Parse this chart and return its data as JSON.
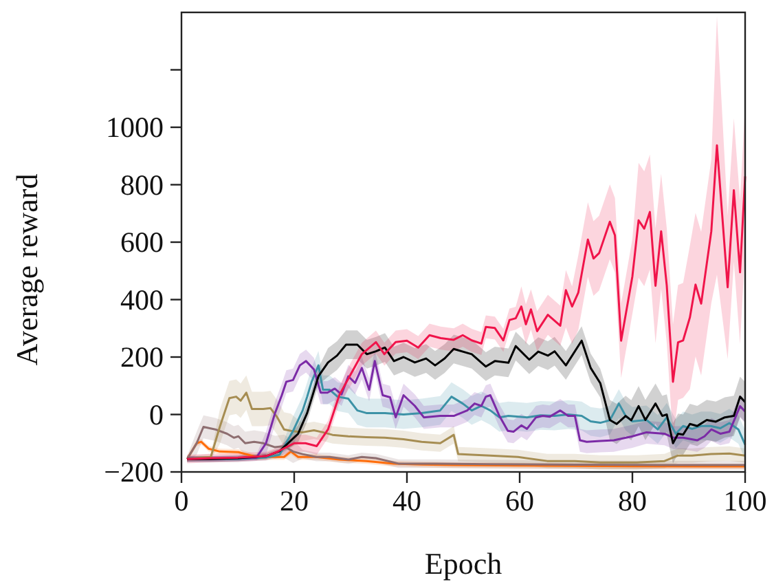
{
  "chart_data": {
    "type": "line",
    "xlabel": "Epoch",
    "ylabel": "Average reward",
    "xlim": [
      0,
      100
    ],
    "ylim": [
      -200,
      1400
    ],
    "xticks": [
      0,
      20,
      40,
      60,
      80,
      100
    ],
    "yticks": [
      {
        "value": -200,
        "label": "−200"
      },
      0,
      200,
      400,
      600,
      800,
      1000,
      {
        "value": 1200,
        "label": null
      }
    ],
    "grid": false,
    "line_style": "solid",
    "marker": "none",
    "series": [
      {
        "color": "#ff6d0a",
        "x": [
          1,
          2.7,
          3.5,
          4.8,
          6.8,
          10.1,
          13.3,
          18.2,
          19.4,
          20.7,
          23.9,
          28,
          32.8,
          37.7,
          42.6,
          48.3,
          60,
          80,
          100
        ],
        "values": [
          -155,
          -100,
          -95,
          -119,
          -129,
          -131,
          -148,
          -148,
          -129,
          -148,
          -148,
          -157,
          -162,
          -171,
          -174,
          -176,
          -178,
          -180,
          -181
        ],
        "upper": [
          -145,
          -90,
          -85,
          -109,
          -119,
          -121,
          -138,
          -138,
          -119,
          -138,
          -138,
          -147,
          -152,
          -161,
          -164,
          -166,
          -168,
          -170,
          -171
        ],
        "lower": [
          -165,
          -110,
          -105,
          -129,
          -139,
          -141,
          -158,
          -158,
          -139,
          -158,
          -158,
          -167,
          -172,
          -181,
          -184,
          -186,
          -188,
          -190,
          -191
        ]
      },
      {
        "color": "#8e6e70",
        "x": [
          1,
          2.7,
          3.9,
          6,
          8.1,
          9.3,
          10.1,
          11.3,
          12.9,
          14.5,
          16.6,
          18.2,
          19.8,
          21.5,
          23.9,
          26.3,
          29.6,
          32,
          34.5,
          38.5,
          45,
          55,
          70,
          85,
          100
        ],
        "values": [
          -155,
          -100,
          -43,
          -52,
          -67,
          -81,
          -76,
          -100,
          -95,
          -100,
          -114,
          -110,
          -129,
          -138,
          -148,
          -148,
          -157,
          -148,
          -152,
          -171,
          -171,
          -173,
          -175,
          -176,
          -176
        ],
        "upper": [
          -145,
          -60,
          -3,
          -12,
          -27,
          -41,
          -36,
          -60,
          -55,
          -60,
          -74,
          -70,
          -89,
          -123,
          -133,
          -133,
          -142,
          -133,
          -137,
          -156,
          -156,
          -158,
          -160,
          -161,
          -161
        ],
        "lower": [
          -165,
          -140,
          -83,
          -92,
          -107,
          -121,
          -116,
          -140,
          -135,
          -140,
          -154,
          -150,
          -169,
          -153,
          -163,
          -163,
          -172,
          -163,
          -167,
          -186,
          -186,
          -188,
          -190,
          -191,
          -191
        ]
      },
      {
        "color": "#a68d52",
        "x": [
          1,
          3.5,
          5.2,
          6.8,
          8.5,
          9.7,
          10.5,
          11.5,
          12.5,
          14.5,
          15.8,
          17,
          18.2,
          19.4,
          21.5,
          23.5,
          25.1,
          26.8,
          29.6,
          32.8,
          36.1,
          39.4,
          42.6,
          45.9,
          48.3,
          49.1,
          51.5,
          54.8,
          59.7,
          64.9,
          69.8,
          74.3,
          80.8,
          85.7,
          88.1,
          90.6,
          93.9,
          97.2,
          100
        ],
        "values": [
          -155,
          -150,
          -148,
          -43,
          57,
          62,
          48,
          76,
          19,
          19,
          22,
          -10,
          -52,
          -57,
          -62,
          -55,
          -62,
          -71,
          -76,
          -79,
          -81,
          -86,
          -95,
          -100,
          -71,
          -138,
          -140,
          -143,
          -148,
          -162,
          -162,
          -167,
          -167,
          -162,
          -143,
          -143,
          -138,
          -136,
          -143
        ],
        "upper": [
          -145,
          -140,
          -138,
          17,
          117,
          122,
          108,
          136,
          79,
          79,
          82,
          50,
          8,
          3,
          -32,
          -25,
          -32,
          -41,
          -46,
          -49,
          -51,
          -56,
          -65,
          -70,
          -41,
          -113,
          -115,
          -118,
          -123,
          -137,
          -137,
          -142,
          -142,
          -137,
          -118,
          -118,
          -113,
          -111,
          -118
        ],
        "lower": [
          -165,
          -160,
          -158,
          -103,
          -3,
          2,
          -12,
          16,
          -41,
          -41,
          -38,
          -70,
          -112,
          -117,
          -92,
          -85,
          -92,
          -101,
          -106,
          -109,
          -111,
          -116,
          -125,
          -130,
          -101,
          -163,
          -165,
          -168,
          -173,
          -187,
          -187,
          -192,
          -192,
          -187,
          -168,
          -168,
          -163,
          -161,
          -168
        ]
      },
      {
        "color": "#3c92a6",
        "x": [
          1,
          5,
          10,
          15,
          17.4,
          19.8,
          21.5,
          22.3,
          23.1,
          24.3,
          25.1,
          26.3,
          27.7,
          29.6,
          31.2,
          32.8,
          36.1,
          39.4,
          42.6,
          45.9,
          47.9,
          49.9,
          51.5,
          53.2,
          54.8,
          56.4,
          58,
          61.3,
          63.7,
          66.2,
          68.6,
          71,
          72.6,
          74.3,
          76,
          77.6,
          78.8,
          80,
          82.5,
          84.5,
          86.1,
          87.7,
          89,
          90.6,
          92.2,
          93.9,
          95.6,
          97.2,
          98.8,
          100
        ],
        "values": [
          -155,
          -155,
          -155,
          -150,
          -140,
          -57,
          14,
          62,
          114,
          171,
          86,
          86,
          62,
          55,
          14,
          5,
          5,
          0,
          5,
          14,
          62,
          38,
          14,
          30,
          14,
          -10,
          -5,
          -10,
          -3,
          -5,
          0,
          -5,
          -24,
          -29,
          -20,
          38,
          -5,
          -24,
          -19,
          -52,
          -10,
          -67,
          -40,
          -50,
          -40,
          -40,
          -48,
          -30,
          -52,
          -105
        ],
        "upper": [
          -145,
          -145,
          -145,
          -140,
          -130,
          -7,
          64,
          112,
          164,
          221,
          136,
          136,
          112,
          105,
          64,
          55,
          55,
          50,
          55,
          64,
          112,
          88,
          64,
          80,
          64,
          40,
          45,
          40,
          47,
          45,
          50,
          45,
          26,
          21,
          30,
          88,
          45,
          26,
          31,
          -2,
          40,
          -17,
          10,
          0,
          10,
          10,
          2,
          20,
          -2,
          -55
        ],
        "lower": [
          -165,
          -165,
          -165,
          -160,
          -150,
          -107,
          -36,
          12,
          64,
          121,
          36,
          36,
          12,
          5,
          -36,
          -45,
          -45,
          -50,
          -45,
          -36,
          12,
          -12,
          -36,
          -20,
          -36,
          -60,
          -55,
          -60,
          -53,
          -55,
          -50,
          -55,
          -74,
          -79,
          -70,
          -12,
          -55,
          -74,
          -69,
          -102,
          -60,
          -117,
          -90,
          -100,
          -90,
          -90,
          -98,
          -80,
          -102,
          -155
        ]
      },
      {
        "color": "#7b2aa6",
        "x": [
          1,
          5,
          10,
          13.3,
          15,
          16.6,
          17.8,
          18.6,
          19.8,
          21,
          22.1,
          23.5,
          24.7,
          25.9,
          27.2,
          28.4,
          29.6,
          30.8,
          32,
          33.3,
          34.3,
          35.7,
          37,
          38,
          39.4,
          41.4,
          43,
          45.9,
          48.3,
          50.7,
          52,
          53.2,
          54,
          54.8,
          56.4,
          57.9,
          58.9,
          60.3,
          61.3,
          62.9,
          64.1,
          65.3,
          67.2,
          68.6,
          69.8,
          70.7,
          71.9,
          74.3,
          76.7,
          80,
          82.5,
          85.7,
          87.3,
          89,
          91.5,
          92.8,
          94,
          95.6,
          97.2,
          99.1,
          100
        ],
        "values": [
          -155,
          -155,
          -152,
          -150,
          -100,
          5,
          67,
          114,
          120,
          171,
          186,
          157,
          76,
          76,
          90,
          70,
          133,
          110,
          162,
          86,
          186,
          67,
          60,
          -10,
          67,
          30,
          -10,
          -5,
          -5,
          14,
          38,
          30,
          62,
          67,
          -5,
          -57,
          -60,
          -38,
          -50,
          -10,
          -5,
          -8,
          14,
          -5,
          -5,
          -90,
          -95,
          -92,
          -90,
          -76,
          -62,
          -67,
          -81,
          -81,
          -90,
          -76,
          -52,
          -67,
          -60,
          29,
          10
        ],
        "upper": [
          -145,
          -145,
          -142,
          -140,
          -60,
          45,
          107,
          154,
          160,
          211,
          226,
          197,
          116,
          116,
          130,
          110,
          173,
          150,
          202,
          126,
          226,
          107,
          100,
          30,
          107,
          70,
          30,
          35,
          35,
          54,
          78,
          70,
          102,
          107,
          35,
          -17,
          -20,
          2,
          -10,
          30,
          35,
          32,
          54,
          35,
          35,
          -50,
          -55,
          -52,
          -50,
          -36,
          -22,
          -27,
          -41,
          -41,
          -50,
          -36,
          -12,
          -27,
          -20,
          69,
          50
        ],
        "lower": [
          -165,
          -165,
          -162,
          -160,
          -140,
          -35,
          27,
          74,
          80,
          131,
          146,
          117,
          36,
          36,
          50,
          30,
          93,
          70,
          122,
          46,
          146,
          27,
          20,
          -50,
          27,
          -10,
          -50,
          -45,
          -45,
          -26,
          -2,
          -10,
          22,
          27,
          -45,
          -97,
          -100,
          -78,
          -90,
          -50,
          -45,
          -48,
          -26,
          -45,
          -45,
          -130,
          -135,
          -132,
          -130,
          -116,
          -102,
          -107,
          -121,
          -121,
          -130,
          -116,
          -92,
          -107,
          -100,
          -11,
          -30
        ]
      },
      {
        "color": "#000000",
        "x": [
          1,
          5,
          10,
          15,
          17.4,
          20.7,
          22.3,
          24.3,
          26,
          27.6,
          29.2,
          31.2,
          32.9,
          34.5,
          36.1,
          37.7,
          39.4,
          41.4,
          43.4,
          45,
          46.7,
          48.3,
          51.5,
          54,
          55.6,
          58,
          59.3,
          61.7,
          63.3,
          65,
          66.2,
          68.2,
          71,
          72.6,
          74.3,
          76,
          77.2,
          78.8,
          79.8,
          81.1,
          82.3,
          84.1,
          85.3,
          86.1,
          87.2,
          88.1,
          89,
          90.2,
          91.5,
          93.2,
          94.8,
          96.4,
          98,
          99.1,
          100
        ],
        "values": [
          -155,
          -155,
          -152,
          -145,
          -128,
          -67,
          5,
          133,
          181,
          205,
          243,
          243,
          210,
          220,
          233,
          186,
          200,
          181,
          195,
          171,
          195,
          228,
          210,
          167,
          186,
          180,
          238,
          191,
          219,
          205,
          220,
          171,
          257,
          162,
          109,
          -19,
          -33,
          -5,
          -20,
          29,
          -19,
          38,
          -5,
          0,
          -100,
          -67,
          -70,
          -33,
          -40,
          -19,
          -25,
          -10,
          -5,
          62,
          43
        ],
        "upper": [
          -145,
          -145,
          -142,
          -135,
          -118,
          -37,
          35,
          163,
          231,
          255,
          293,
          293,
          260,
          270,
          283,
          236,
          250,
          231,
          245,
          221,
          245,
          278,
          260,
          217,
          236,
          230,
          288,
          241,
          269,
          255,
          270,
          221,
          307,
          212,
          159,
          51,
          37,
          65,
          50,
          99,
          51,
          108,
          65,
          70,
          -30,
          3,
          0,
          37,
          30,
          51,
          45,
          60,
          65,
          132,
          113
        ],
        "lower": [
          -165,
          -165,
          -162,
          -155,
          -138,
          -97,
          -25,
          103,
          131,
          155,
          193,
          193,
          160,
          170,
          183,
          136,
          150,
          131,
          145,
          121,
          145,
          178,
          160,
          117,
          136,
          130,
          188,
          141,
          169,
          155,
          170,
          121,
          207,
          112,
          59,
          -89,
          -103,
          -75,
          -90,
          -41,
          -89,
          -32,
          -75,
          -70,
          -170,
          -137,
          -140,
          -103,
          -110,
          -89,
          -95,
          -80,
          -75,
          -8,
          -27
        ]
      },
      {
        "color": "#f0144a",
        "x": [
          1,
          5,
          10,
          15,
          17,
          20,
          22,
          24,
          26,
          28,
          30,
          32,
          34.5,
          36,
          38,
          40,
          42,
          44,
          46,
          48.3,
          49.9,
          51.5,
          53.2,
          54,
          55.6,
          57.1,
          58.2,
          59.3,
          60.3,
          61.1,
          62,
          63.1,
          65,
          67.2,
          68.2,
          69.3,
          70.4,
          72.1,
          73.1,
          74.1,
          76,
          76.9,
          78,
          80,
          81.1,
          82.1,
          83.1,
          84.1,
          85.1,
          86.1,
          87.2,
          88.1,
          89,
          90.2,
          91.2,
          92.2,
          94,
          95,
          96.9,
          98,
          99.1,
          100
        ],
        "values": [
          -155,
          -152,
          -150,
          -145,
          -130,
          -100,
          -100,
          -110,
          -52,
          67,
          139,
          210,
          252,
          210,
          252,
          257,
          233,
          276,
          266,
          260,
          276,
          258,
          247,
          305,
          301,
          258,
          329,
          335,
          376,
          314,
          366,
          290,
          347,
          309,
          433,
          376,
          424,
          609,
          543,
          562,
          671,
          624,
          257,
          481,
          676,
          647,
          705,
          448,
          638,
          448,
          114,
          251,
          258,
          338,
          452,
          386,
          638,
          937,
          443,
          781,
          495,
          829
        ],
        "upper": [
          -140,
          -137,
          -135,
          -130,
          -115,
          -70,
          -70,
          -80,
          -22,
          97,
          179,
          250,
          292,
          250,
          292,
          297,
          273,
          316,
          306,
          300,
          316,
          298,
          287,
          345,
          341,
          298,
          369,
          375,
          446,
          384,
          436,
          360,
          417,
          379,
          503,
          446,
          554,
          739,
          673,
          692,
          801,
          754,
          387,
          611,
          876,
          847,
          905,
          648,
          838,
          648,
          314,
          451,
          458,
          588,
          702,
          636,
          888,
          1387,
          693,
          1031,
          745,
          1079
        ],
        "lower": [
          -170,
          -167,
          -165,
          -160,
          -145,
          -130,
          -130,
          -140,
          -82,
          37,
          99,
          170,
          212,
          170,
          212,
          217,
          193,
          236,
          226,
          220,
          236,
          218,
          207,
          265,
          261,
          218,
          289,
          295,
          306,
          244,
          296,
          220,
          277,
          239,
          303,
          246,
          294,
          479,
          413,
          432,
          541,
          494,
          127,
          351,
          476,
          447,
          505,
          248,
          438,
          248,
          -86,
          51,
          58,
          88,
          202,
          136,
          388,
          487,
          193,
          531,
          245,
          579
        ]
      }
    ]
  }
}
